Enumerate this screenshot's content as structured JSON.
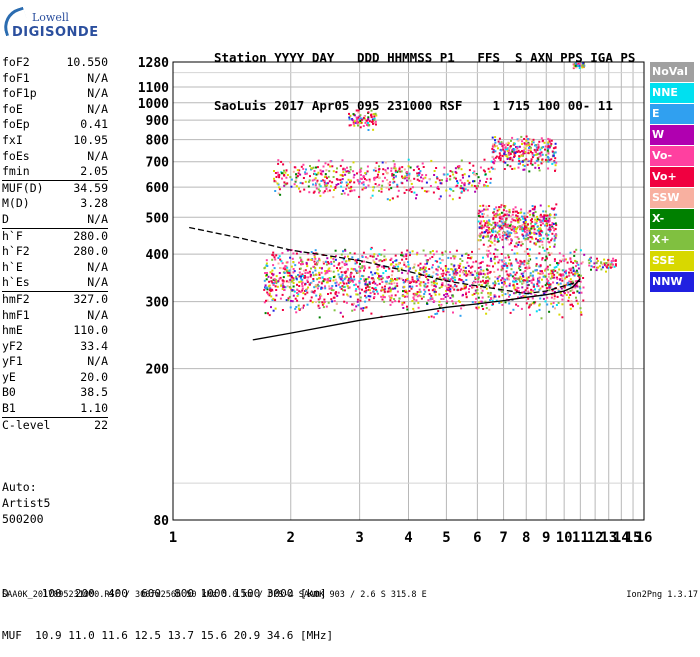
{
  "logo": {
    "line1": "Lowell",
    "line2": "DIGISONDE"
  },
  "header": {
    "row1": "Station YYYY DAY   DDD HHMMSS P1   FFS  S AXN PPS IGA PS",
    "row2": "SaoLuis 2017 Apr05 095 231000 RSF    1 715 100 00- 11"
  },
  "params": [
    {
      "name": "foF2",
      "value": "10.550"
    },
    {
      "name": "foF1",
      "value": "N/A"
    },
    {
      "name": "foF1p",
      "value": "N/A"
    },
    {
      "name": "foE",
      "value": "N/A"
    },
    {
      "name": "foEp",
      "value": "0.41"
    },
    {
      "name": "fxI",
      "value": "10.95"
    },
    {
      "name": "foEs",
      "value": "N/A"
    },
    {
      "name": "fmin",
      "value": "2.05"
    },
    {
      "name": "MUF(D)",
      "value": "34.59",
      "sep": true
    },
    {
      "name": "M(D)",
      "value": "3.28"
    },
    {
      "name": "D",
      "value": "N/A"
    },
    {
      "name": "h`F",
      "value": "280.0",
      "sep": true
    },
    {
      "name": "h`F2",
      "value": "280.0"
    },
    {
      "name": "h`E",
      "value": "N/A"
    },
    {
      "name": "h`Es",
      "value": "N/A"
    },
    {
      "name": "hmF2",
      "value": "327.0",
      "sep": true
    },
    {
      "name": "hmF1",
      "value": "N/A"
    },
    {
      "name": "hmE",
      "value": "110.0"
    },
    {
      "name": "yF2",
      "value": "33.4"
    },
    {
      "name": "yF1",
      "value": "N/A"
    },
    {
      "name": "yE",
      "value": "20.0"
    },
    {
      "name": "B0",
      "value": "38.5"
    },
    {
      "name": "B1",
      "value": "1.10"
    },
    {
      "name": "C-level",
      "value": "22",
      "sep": true
    }
  ],
  "artist": {
    "line1": "Auto:",
    "line2": "Artist5",
    "line3": "500200"
  },
  "legend": [
    {
      "label": "NoVal",
      "color": "#a0a0a0"
    },
    {
      "label": "NNE",
      "color": "#00e0f0"
    },
    {
      "label": "E",
      "color": "#30a0f0"
    },
    {
      "label": "W",
      "color": "#b000b0"
    },
    {
      "label": "Vo-",
      "color": "#ff40a0"
    },
    {
      "label": "Vo+",
      "color": "#f00040"
    },
    {
      "label": "SSW",
      "color": "#f8b0a0"
    },
    {
      "label": "X-",
      "color": "#008000"
    },
    {
      "label": "X+",
      "color": "#80c040"
    },
    {
      "label": "SSE",
      "color": "#d8d800"
    },
    {
      "label": "NNW",
      "color": "#2020e0"
    }
  ],
  "muf_table": {
    "row1": "D     100  200  400  600  800 1000 1500 3000 [km]",
    "row2": "MUF  10.9 11.0 11.6 12.5 13.7 15.6 20.9 34.6 [MHz]"
  },
  "footer": {
    "left": "SAA0K_2017095231000.RSF / 300fx256h 50 kHz 5.0 km / DPS-4 SAA0K 903 / 2.6 S 315.8 E",
    "right": "Ion2Png 1.3.17"
  },
  "chart_data": {
    "type": "scatter",
    "xlim": [
      1,
      16
    ],
    "ylim": [
      80,
      1280
    ],
    "x_scale": "log",
    "y_scale": "log",
    "x_ticks": [
      1,
      2,
      3,
      4,
      5,
      6,
      7,
      8,
      9,
      10,
      11,
      12,
      13,
      14,
      15,
      16
    ],
    "y_ticks": [
      80,
      200,
      300,
      400,
      500,
      600,
      700,
      800,
      900,
      1000,
      1100,
      1280
    ],
    "grid": true,
    "legend_position": "right",
    "traces": [
      {
        "name": "ordinary_o_trace",
        "color": "#000000",
        "points": [
          [
            1.6,
            238
          ],
          [
            2.0,
            248
          ],
          [
            3.0,
            268
          ],
          [
            4.0,
            280
          ],
          [
            5.0,
            290
          ],
          [
            6.0,
            296
          ],
          [
            7.0,
            302
          ],
          [
            8.0,
            308
          ],
          [
            9.0,
            313
          ],
          [
            10.0,
            320
          ],
          [
            10.5,
            327
          ],
          [
            11.0,
            345
          ]
        ]
      },
      {
        "name": "dashed_trace",
        "color": "#000000",
        "points": [
          [
            1.1,
            470
          ],
          [
            1.5,
            440
          ],
          [
            2.0,
            410
          ],
          [
            3.0,
            385
          ],
          [
            4.0,
            360
          ],
          [
            5.0,
            340
          ],
          [
            6.0,
            330
          ],
          [
            7.0,
            322
          ],
          [
            8.0,
            315
          ],
          [
            9.0,
            320
          ],
          [
            10.0,
            330
          ],
          [
            11.0,
            340
          ]
        ]
      }
    ],
    "echo_clusters": [
      {
        "x": [
          1.7,
          11.2
        ],
        "y": [
          270,
          420
        ],
        "density": 1800
      },
      {
        "x": [
          6.0,
          9.5
        ],
        "y": [
          400,
          550
        ],
        "density": 500
      },
      {
        "x": [
          1.8,
          6.5
        ],
        "y": [
          550,
          720
        ],
        "density": 500
      },
      {
        "x": [
          6.5,
          9.5
        ],
        "y": [
          660,
          830
        ],
        "density": 300
      },
      {
        "x": [
          2.8,
          3.3
        ],
        "y": [
          850,
          970
        ],
        "density": 80
      },
      {
        "x": [
          11.5,
          13.5
        ],
        "y": [
          360,
          400
        ],
        "density": 60
      },
      {
        "x": [
          10.5,
          11.2
        ],
        "y": [
          1240,
          1280
        ],
        "density": 40
      }
    ]
  }
}
